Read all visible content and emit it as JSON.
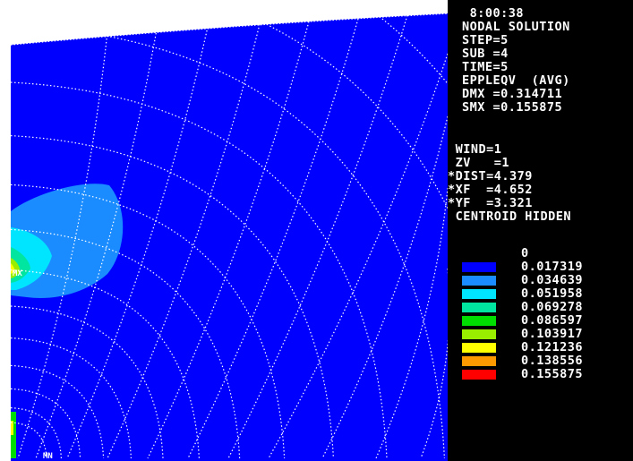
{
  "info_lines": [
    " 8:00:38",
    "NODAL SOLUTION",
    "STEP=5",
    "SUB =4",
    "TIME=5",
    "EPPLEQV  (AVG)",
    "DMX =0.314711",
    "SMX =0.155875"
  ],
  "window_lines": [
    " WIND=1",
    " ZV   =1",
    "*DIST=4.379",
    "*XF  =4.652",
    "*YF  =3.321",
    " CENTROID HIDDEN"
  ],
  "legend": {
    "min_label": "0",
    "entries": [
      {
        "value": "0.017319",
        "color": "#0000ff"
      },
      {
        "value": "0.034639",
        "color": "#1a8cff"
      },
      {
        "value": "0.051958",
        "color": "#00e5ff"
      },
      {
        "value": "0.069278",
        "color": "#00e5a0"
      },
      {
        "value": "0.086597",
        "color": "#00dd00"
      },
      {
        "value": "0.103917",
        "color": "#99ee00"
      },
      {
        "value": "0.121236",
        "color": "#ffff00"
      },
      {
        "value": "0.138556",
        "color": "#ff9900"
      },
      {
        "value": "0.155875",
        "color": "#ff0000"
      }
    ]
  },
  "plot": {
    "background_color": "#0000ff",
    "grid_color": "#ffffff",
    "mesh_markers": [
      "MX",
      "MN"
    ]
  }
}
